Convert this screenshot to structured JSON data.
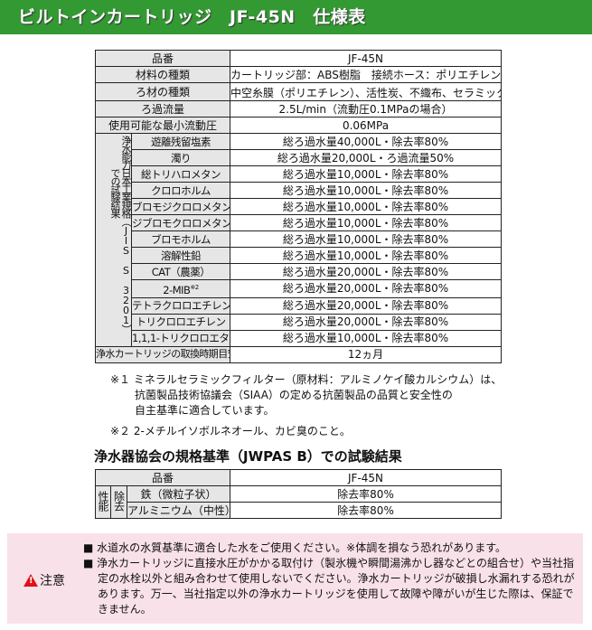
{
  "title": "ビルトインカートリッジ　JF-45N　仕様表",
  "spec": {
    "rows": [
      {
        "label": "品番",
        "value": "JF-45N"
      },
      {
        "label": "材料の種類",
        "value": "カートリッジ部：ABS樹脂　接続ホース：ポリエチレン"
      },
      {
        "label": "ろ材の種類",
        "value": "中空糸膜（ポリエチレン）、活性炭、不織布、セラミック",
        "sup": "※1"
      },
      {
        "label": "ろ過流量",
        "value": "2.5L/min（流動圧0.1MPaの場合）"
      },
      {
        "label": "使用可能な最小流動圧",
        "value": "0.06MPa"
      }
    ],
    "group_label_1": "浄水能力日本工業規格（JIS S 3201）",
    "group_label_2": "での試験結果",
    "group_rows": [
      {
        "label": "遊離残留塩素",
        "value": "総ろ過水量40,000L・除去率80%"
      },
      {
        "label": "濁り",
        "value": "総ろ過水量20,000L・ろ過流量50%"
      },
      {
        "label": "総トリハロメタン",
        "value": "総ろ過水量10,000L・除去率80%"
      },
      {
        "label": "クロロホルム",
        "value": "総ろ過水量10,000L・除去率80%"
      },
      {
        "label": "ブロモジクロロメタン",
        "value": "総ろ過水量10,000L・除去率80%"
      },
      {
        "label": "ジブロモクロロメタン",
        "value": "総ろ過水量10,000L・除去率80%"
      },
      {
        "label": "ブロモホルム",
        "value": "総ろ過水量10,000L・除去率80%"
      },
      {
        "label": "溶解性鉛",
        "value": "総ろ過水量10,000L・除去率80%"
      },
      {
        "label": "CAT（農薬）",
        "value": "総ろ過水量20,000L・除去率80%"
      },
      {
        "label": "2-MIB",
        "sup": "※2",
        "value": "総ろ過水量20,000L・除去率80%"
      },
      {
        "label": "テトラクロロエチレン",
        "value": "総ろ過水量20,000L・除去率80%"
      },
      {
        "label": "トリクロロエチレン",
        "value": "総ろ過水量20,000L・除去率80%"
      },
      {
        "label": "1,1,1-トリクロロエタン",
        "value": "総ろ過水量10,000L・除去率80%"
      }
    ],
    "last": {
      "label": "浄水カートリッジの取換時期目安",
      "value": "12ヵ月"
    }
  },
  "notes": {
    "n1a": "※１ ミネラルセラミックフィルター（原材料：アルミノケイ酸カルシウム）は、",
    "n1b": "抗菌製品技術協議会（SIAA）の定める抗菌製品の品質と安全性の",
    "n1c": "自主基準に適合しています。",
    "n2": "※２ 2-メチルイソボルネオール、カビ臭のこと。"
  },
  "jwpas": {
    "heading": "浄水器協会の規格基準（JWPAS B）での試験結果",
    "header_label": "品番",
    "header_value": "JF-45N",
    "perf": "性能",
    "remove": "除去",
    "rows": [
      {
        "label": "鉄（微粒子状）",
        "value": "除去率80%"
      },
      {
        "label": "アルミニウム（中性）",
        "value": "除去率80%"
      }
    ]
  },
  "caution": {
    "label": "注意",
    "items": [
      "■ 水道水の水質基準に適合した水をご使用ください。※体調を損なう恐れがあります。",
      "■ 浄水カートリッジに直接水圧がかかる取付け（製氷機や瞬間湯沸かし器などとの組合せ）や当社指定の水栓以外と組み合わせて使用しないでください。浄水カートリッジが破損し水漏れする恐れがあります。万一、当社指定以外の浄水カートリッジを使用して故障や障がいが生じた際は、保証できません。"
    ],
    "color": "#e0101a"
  }
}
